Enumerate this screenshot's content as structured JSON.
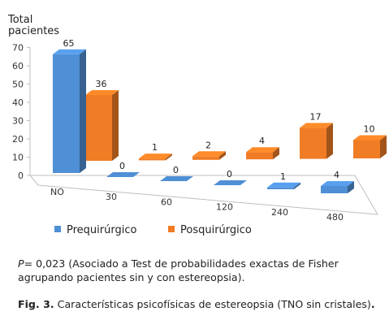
{
  "chart_data": {
    "type": "bar",
    "ylabel_line1": "Total",
    "ylabel_line2": "pacientes",
    "yticks": [
      0,
      10,
      20,
      30,
      40,
      50,
      60,
      70
    ],
    "ylim": [
      0,
      70
    ],
    "categories": [
      "NO",
      "30",
      "60",
      "120",
      "240",
      "480"
    ],
    "series": [
      {
        "name": "Prequirúrgico",
        "values": [
          65,
          0,
          0,
          0,
          1,
          4
        ],
        "color": "#4f8fd5"
      },
      {
        "name": "Posquirúrgico",
        "values": [
          36,
          1,
          2,
          4,
          17,
          10
        ],
        "color": "#f07c25"
      }
    ],
    "legend_position": "bottom"
  },
  "caption": {
    "p_italic": "P",
    "p_text": "= 0,023 (Asociado a Test de probabilidades exactas de Fisher agrupando pacientes sin y con estereopsia).",
    "fig_bold": "Fig. 3.",
    "fig_text": " Características psicofísicas de estereopsia (TNO sin cristales)",
    "fig_end": "."
  }
}
